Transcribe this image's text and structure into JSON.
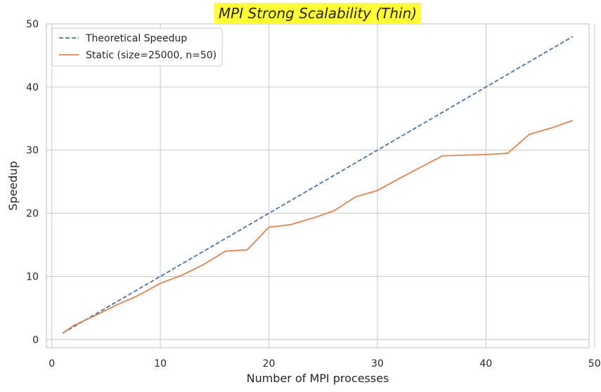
{
  "chart_data": {
    "type": "line",
    "title": "MPI Strong Scalability (Thin)",
    "title_highlight_color": "#ffff33",
    "xlabel": "Number of MPI processes",
    "ylabel": "Speedup",
    "xlim": [
      -0.5,
      49.5
    ],
    "ylim": [
      -1.3,
      50
    ],
    "xticks": [
      0,
      10,
      20,
      30,
      40,
      50
    ],
    "yticks": [
      0,
      10,
      20,
      30,
      40,
      50
    ],
    "xtick_labels": [
      "0",
      "10",
      "20",
      "30",
      "40",
      "50"
    ],
    "ytick_labels": [
      "0",
      "10",
      "20",
      "30",
      "40",
      "50"
    ],
    "grid": true,
    "legend_position": "top-left",
    "series": [
      {
        "name": "Theoretical Speedup",
        "style": "dashed",
        "color": "#4c72b0",
        "x": [
          1,
          48
        ],
        "y": [
          1,
          48
        ]
      },
      {
        "name": "Static (size=25000, n=50)",
        "style": "solid",
        "color": "#dd8452",
        "x": [
          1,
          2,
          4,
          6,
          8,
          10,
          12,
          14,
          16,
          18,
          20,
          22,
          24,
          26,
          28,
          30,
          32,
          34,
          36,
          38,
          40,
          42,
          44,
          46,
          48
        ],
        "y": [
          1.0,
          2.2,
          3.8,
          5.5,
          7.0,
          8.9,
          10.2,
          11.9,
          14.0,
          14.2,
          17.8,
          18.2,
          19.2,
          20.4,
          22.6,
          23.6,
          25.5,
          27.3,
          29.1,
          29.2,
          29.3,
          29.5,
          32.5,
          33.5,
          34.7
        ]
      }
    ]
  }
}
